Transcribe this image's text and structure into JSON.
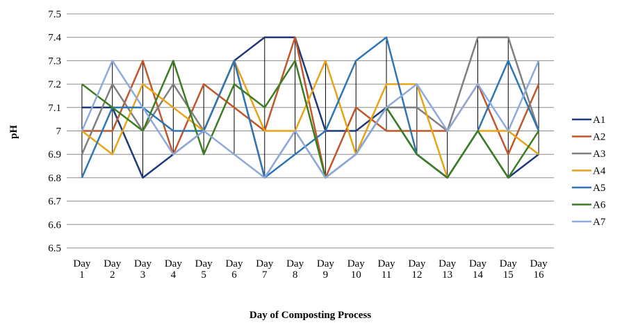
{
  "chart_data": {
    "type": "line",
    "title": "",
    "xlabel": "Day of Composting  Process",
    "ylabel": "pH",
    "ylim": [
      6.5,
      7.5
    ],
    "ytick_step": 0.1,
    "ytick_labels": [
      "6.5",
      "6.6",
      "6.7",
      "6.8",
      "6.9",
      "7",
      "7.1",
      "7.2",
      "7.3",
      "7.4",
      "7.5"
    ],
    "grid": "horizontal",
    "drop_lines": true,
    "legend_position": "right",
    "categories": [
      [
        "Day",
        "1"
      ],
      [
        "Day",
        "2"
      ],
      [
        "Day",
        "3"
      ],
      [
        "Day",
        "4"
      ],
      [
        "Day",
        "5"
      ],
      [
        "Day",
        "6"
      ],
      [
        "Day",
        "7"
      ],
      [
        "Day",
        "8"
      ],
      [
        "Day",
        "9"
      ],
      [
        "Day",
        "10"
      ],
      [
        "Day",
        "11"
      ],
      [
        "Day",
        "12"
      ],
      [
        "Day",
        "13"
      ],
      [
        "Day",
        "14"
      ],
      [
        "Day",
        "15"
      ],
      [
        "Day",
        "16"
      ]
    ],
    "series": [
      {
        "name": "A1",
        "color": "#1f3a7a",
        "values": [
          7.1,
          7.1,
          6.8,
          6.9,
          7.0,
          7.3,
          7.4,
          7.4,
          7.0,
          7.0,
          7.1,
          6.9,
          6.8,
          7.0,
          6.8,
          6.9
        ]
      },
      {
        "name": "A2",
        "color": "#c0562a",
        "values": [
          7.0,
          7.0,
          7.3,
          6.9,
          7.2,
          7.1,
          7.0,
          7.4,
          6.8,
          7.1,
          7.0,
          7.0,
          7.0,
          7.2,
          6.9,
          7.2
        ]
      },
      {
        "name": "A3",
        "color": "#7f7f7f",
        "values": [
          6.9,
          7.2,
          7.0,
          7.2,
          7.0,
          7.3,
          6.8,
          7.0,
          6.8,
          6.9,
          7.1,
          7.1,
          7.0,
          7.4,
          7.4,
          7.0
        ]
      },
      {
        "name": "A4",
        "color": "#e8a317",
        "values": [
          7.0,
          6.9,
          7.2,
          7.1,
          7.0,
          7.3,
          7.0,
          7.0,
          7.3,
          6.9,
          7.2,
          7.2,
          6.8,
          7.0,
          7.0,
          6.9
        ]
      },
      {
        "name": "A5",
        "color": "#2e75b6",
        "values": [
          6.8,
          7.1,
          7.1,
          7.0,
          7.0,
          7.3,
          6.8,
          6.9,
          7.0,
          7.3,
          7.4,
          6.9,
          6.8,
          7.0,
          7.3,
          7.0
        ]
      },
      {
        "name": "A6",
        "color": "#3b7d23",
        "values": [
          7.2,
          7.1,
          7.0,
          7.3,
          6.9,
          7.2,
          7.1,
          7.3,
          6.8,
          6.9,
          7.1,
          6.9,
          6.8,
          7.0,
          6.8,
          7.0
        ]
      },
      {
        "name": "A7",
        "color": "#8ea9db",
        "values": [
          7.0,
          7.3,
          7.1,
          6.9,
          7.0,
          6.9,
          6.8,
          7.0,
          6.8,
          6.9,
          7.1,
          7.2,
          7.0,
          7.2,
          7.0,
          7.3
        ]
      }
    ]
  }
}
